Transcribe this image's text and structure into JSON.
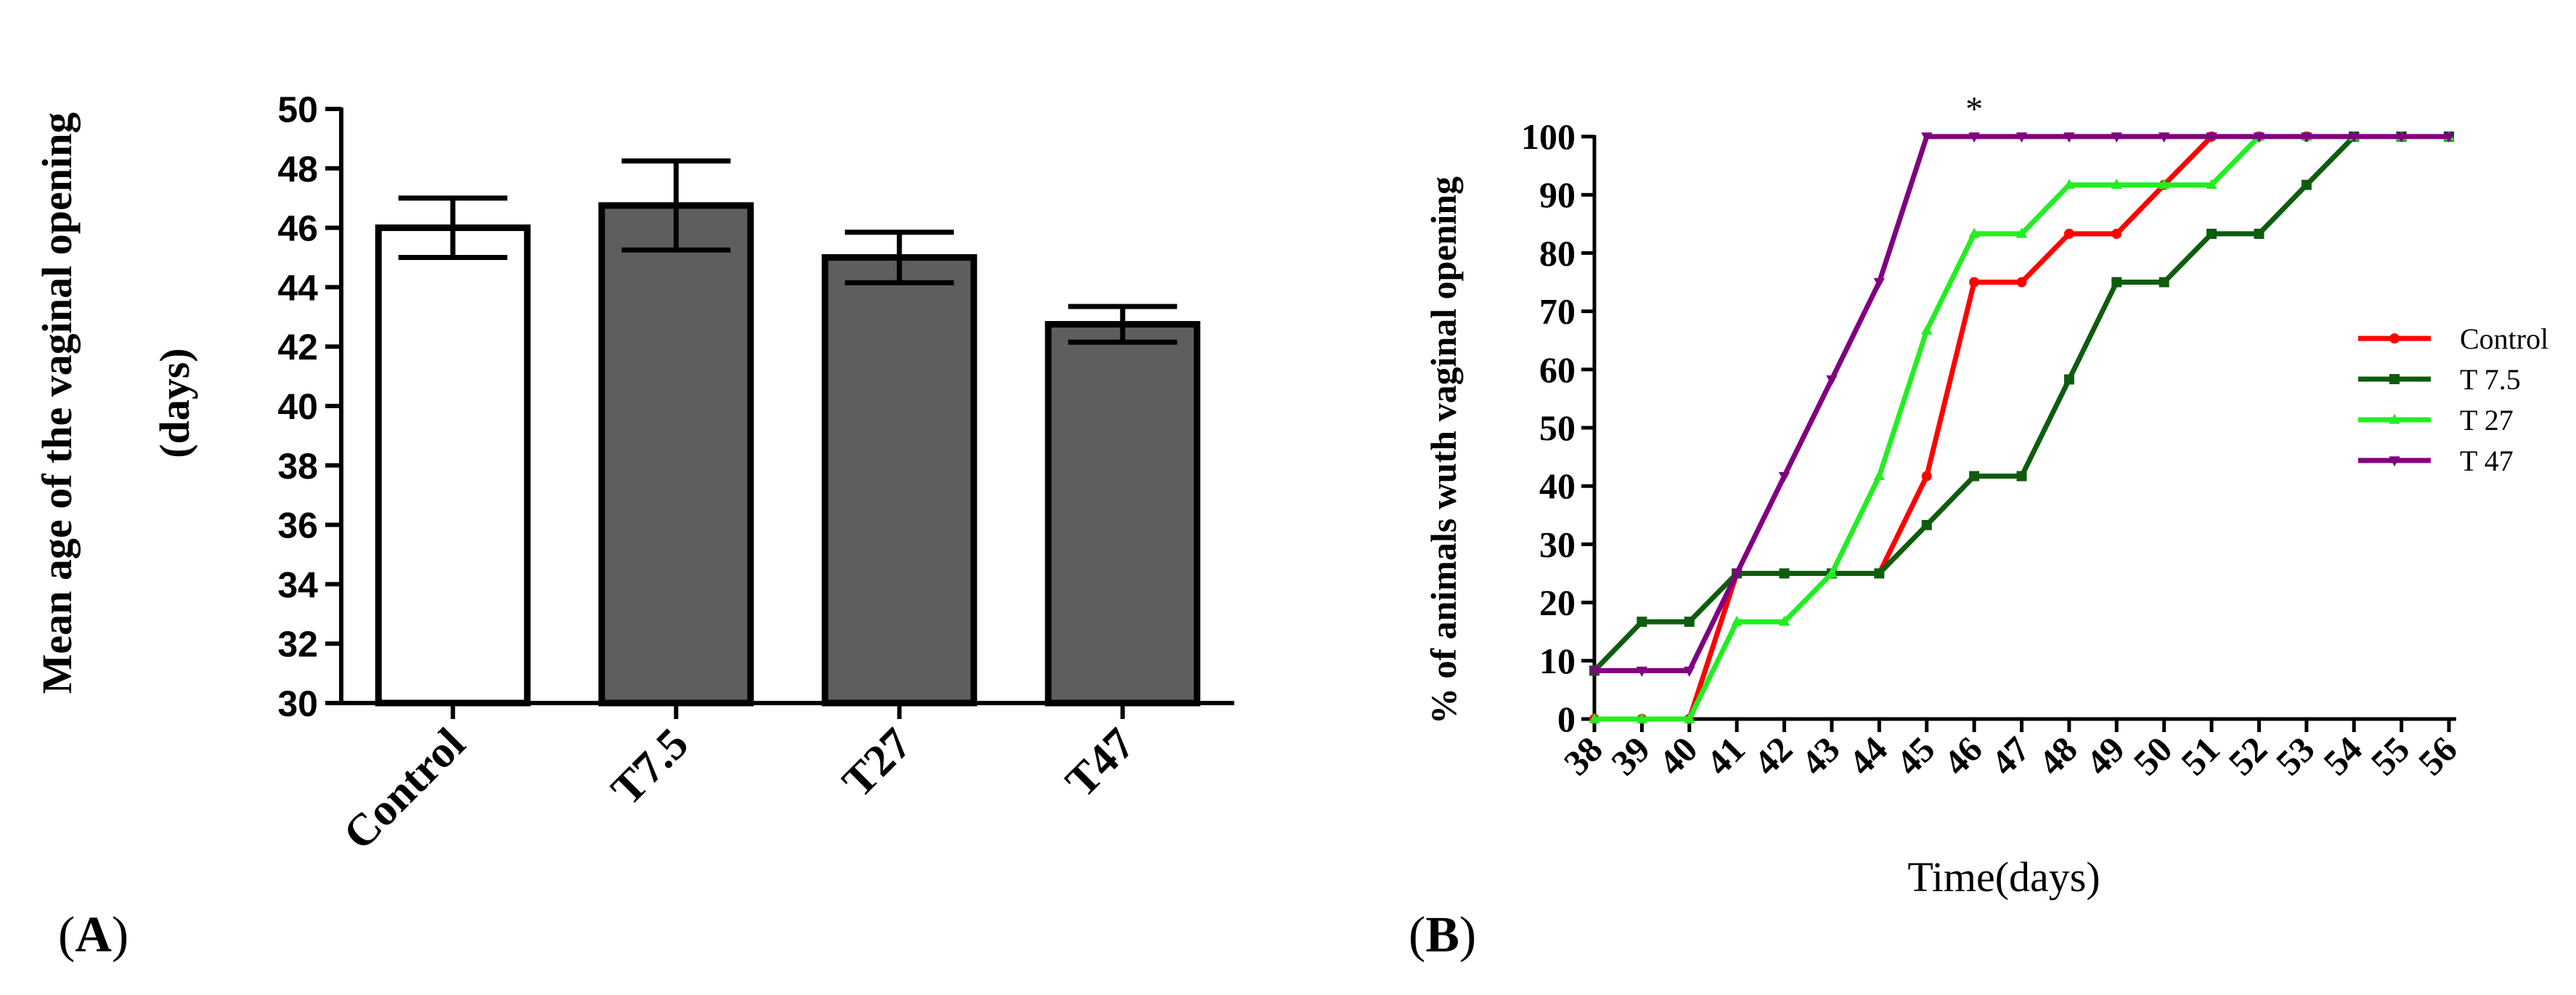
{
  "chart_data": [
    {
      "type": "bar",
      "panel_label_prefix": "(",
      "panel_label_letter": "A",
      "panel_label_suffix": ")",
      "ylabel_line1": "Mean age of the vaginal opening",
      "ylabel_line2": "(days)",
      "xlabel": "",
      "ylim": [
        30,
        50
      ],
      "yticks": [
        30,
        32,
        34,
        36,
        38,
        40,
        42,
        44,
        46,
        48,
        50
      ],
      "categories": [
        "Control",
        "T7.5",
        "T27",
        "T47"
      ],
      "values": [
        46.0,
        46.75,
        45.0,
        42.75
      ],
      "error": [
        1.0,
        1.5,
        0.85,
        0.6
      ],
      "colors": [
        "#ffffff",
        "#5e5e5e",
        "#5e5e5e",
        "#5e5e5e"
      ],
      "grid": false
    },
    {
      "type": "line",
      "panel_label_prefix": "(",
      "panel_label_letter": "B",
      "panel_label_suffix": ")",
      "ylabel": "% of animals wuth vaginal opening",
      "xlabel": "Time(days)",
      "x": [
        38,
        39,
        40,
        41,
        42,
        43,
        44,
        45,
        46,
        47,
        48,
        49,
        50,
        51,
        52,
        53,
        54,
        55,
        56
      ],
      "ylim": [
        0,
        100
      ],
      "yticks": [
        0,
        10,
        20,
        30,
        40,
        50,
        60,
        70,
        80,
        90,
        100
      ],
      "annotation": {
        "text": "*",
        "x": 46,
        "y": 100
      },
      "legend_position": "right",
      "grid": false,
      "series": [
        {
          "name": "Control",
          "color": "#ff0000",
          "marker": "circle",
          "values": [
            0,
            0,
            0,
            25,
            25,
            25,
            25,
            41.7,
            75,
            75,
            83.3,
            83.3,
            91.7,
            100,
            100,
            100,
            100,
            100,
            100
          ]
        },
        {
          "name": "T 7.5",
          "color": "#0e5c0e",
          "marker": "square",
          "values": [
            8.3,
            16.7,
            16.7,
            25,
            25,
            25,
            25,
            33.3,
            41.7,
            41.7,
            58.3,
            75,
            75,
            83.3,
            83.3,
            91.7,
            100,
            100,
            100
          ]
        },
        {
          "name": "T 27",
          "color": "#22ee22",
          "marker": "triangle-up",
          "values": [
            0,
            0,
            0,
            16.7,
            16.7,
            25,
            41.7,
            66.7,
            83.3,
            83.3,
            91.7,
            91.7,
            91.7,
            91.7,
            100,
            100,
            100,
            100,
            100
          ]
        },
        {
          "name": "T 47",
          "color": "#800080",
          "marker": "triangle-down",
          "values": [
            8.3,
            8.3,
            8.3,
            25,
            41.7,
            58.3,
            75,
            100,
            100,
            100,
            100,
            100,
            100,
            100,
            100,
            100,
            100,
            100,
            100
          ]
        }
      ]
    }
  ]
}
